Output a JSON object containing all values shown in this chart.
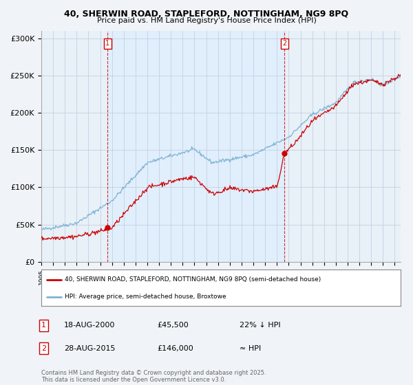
{
  "title_line1": "40, SHERWIN ROAD, STAPLEFORD, NOTTINGHAM, NG9 8PQ",
  "title_line2": "Price paid vs. HM Land Registry's House Price Index (HPI)",
  "ylim": [
    0,
    310000
  ],
  "yticks": [
    0,
    50000,
    100000,
    150000,
    200000,
    250000,
    300000
  ],
  "ytick_labels": [
    "£0",
    "£50K",
    "£100K",
    "£150K",
    "£200K",
    "£250K",
    "£300K"
  ],
  "xlim_start": 1995.0,
  "xlim_end": 2025.5,
  "marker1_x": 2000.63,
  "marker1_y": 45500,
  "marker2_x": 2015.65,
  "marker2_y": 146000,
  "sale_color": "#cc0000",
  "hpi_color": "#7fb3d3",
  "shade_color": "#ddeeff",
  "legend_label1": "40, SHERWIN ROAD, STAPLEFORD, NOTTINGHAM, NG9 8PQ (semi-detached house)",
  "legend_label2": "HPI: Average price, semi-detached house, Broxtowe",
  "table_row1_num": "1",
  "table_row1_date": "18-AUG-2000",
  "table_row1_price": "£45,500",
  "table_row1_hpi": "22% ↓ HPI",
  "table_row2_num": "2",
  "table_row2_date": "28-AUG-2015",
  "table_row2_price": "£146,000",
  "table_row2_hpi": "≈ HPI",
  "footnote": "Contains HM Land Registry data © Crown copyright and database right 2025.\nThis data is licensed under the Open Government Licence v3.0.",
  "background_color": "#f0f4f8",
  "plot_bg_color": "#e8f0f8"
}
